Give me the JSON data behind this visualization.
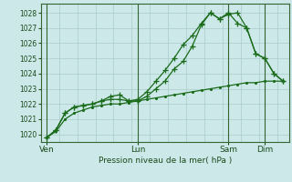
{
  "xlabel": "Pression niveau de la mer( hPa )",
  "bg_color": "#cce8e8",
  "grid_color_h": "#aacccc",
  "grid_color_v": "#aacccc",
  "line_color": "#1a6b1a",
  "ylim": [
    1019.5,
    1028.6
  ],
  "yticks": [
    1020,
    1021,
    1022,
    1023,
    1024,
    1025,
    1026,
    1027,
    1028
  ],
  "xtick_labels": [
    "Ven",
    "Lun",
    "Sam",
    "Dim"
  ],
  "xtick_positions": [
    0,
    30,
    60,
    72
  ],
  "vline_positions": [
    0,
    30,
    60,
    72
  ],
  "line1_x": [
    0,
    3,
    6,
    9,
    12,
    15,
    18,
    21,
    24,
    27,
    30,
    33,
    36,
    39,
    42,
    45,
    48,
    51,
    54,
    57,
    60,
    63,
    66,
    69,
    72,
    75,
    78
  ],
  "line1_y": [
    1019.8,
    1020.3,
    1021.4,
    1021.8,
    1021.9,
    1022.0,
    1022.2,
    1022.5,
    1022.6,
    1022.2,
    1022.3,
    1022.8,
    1023.5,
    1024.2,
    1025.0,
    1025.9,
    1026.5,
    1027.3,
    1028.0,
    1027.6,
    1028.0,
    1027.3,
    1027.0,
    1025.3,
    1025.0,
    1024.0,
    1023.5
  ],
  "line2_x": [
    0,
    3,
    6,
    9,
    12,
    15,
    18,
    21,
    24,
    27,
    30,
    33,
    36,
    39,
    42,
    45,
    48,
    51,
    54,
    57,
    60,
    63,
    66,
    69,
    72,
    75,
    78
  ],
  "line2_y": [
    1019.8,
    1020.3,
    1021.4,
    1021.8,
    1021.9,
    1022.0,
    1022.2,
    1022.3,
    1022.3,
    1022.2,
    1022.2,
    1022.5,
    1023.0,
    1023.5,
    1024.3,
    1024.8,
    1025.8,
    1027.2,
    1028.0,
    1027.6,
    1027.9,
    1028.0,
    1027.0,
    1025.3,
    1025.0,
    1024.0,
    1023.5
  ],
  "line3_x": [
    0,
    3,
    6,
    9,
    12,
    15,
    18,
    21,
    24,
    27,
    30,
    33,
    36,
    39,
    42,
    45,
    48,
    51,
    54,
    57,
    60,
    63,
    66,
    69,
    72,
    75,
    78
  ],
  "line3_y": [
    1019.8,
    1020.2,
    1021.0,
    1021.4,
    1021.6,
    1021.8,
    1021.9,
    1022.0,
    1022.0,
    1022.1,
    1022.2,
    1022.3,
    1022.4,
    1022.5,
    1022.6,
    1022.7,
    1022.8,
    1022.9,
    1023.0,
    1023.1,
    1023.2,
    1023.3,
    1023.4,
    1023.4,
    1023.5,
    1023.5,
    1023.5
  ]
}
